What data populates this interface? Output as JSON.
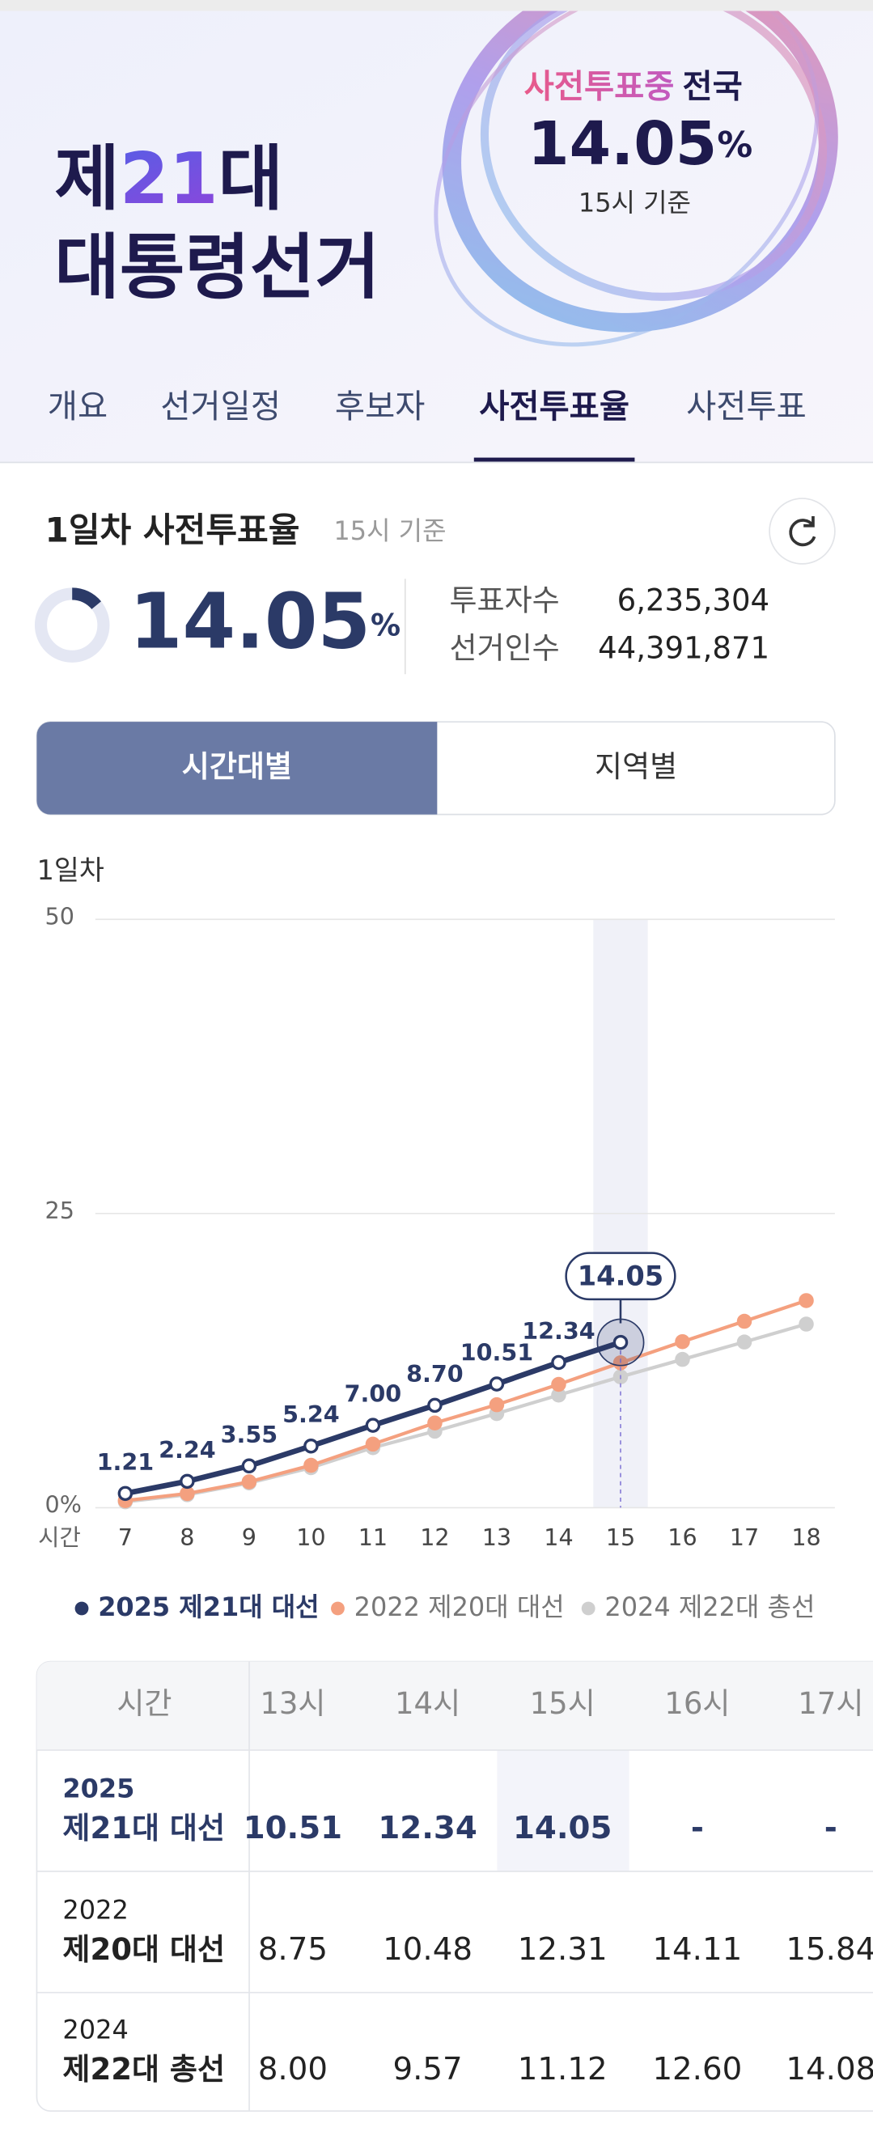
{
  "header": {
    "title_parts": [
      "제",
      "21",
      "대"
    ],
    "title_line2": "대통령선거",
    "badge_status": "사전투표중",
    "badge_scope": "전국",
    "badge_rate": 14.05,
    "badge_unit": "%",
    "badge_basis": "15시 기준"
  },
  "tabs": [
    "개요",
    "선거일정",
    "후보자",
    "사전투표율",
    "사전투표"
  ],
  "summary": {
    "title": "1일차 사전투표율",
    "basis": "15시 기준",
    "rate": 14.05,
    "unit": "%",
    "voters_label": "투표자수",
    "voters": "6,235,304",
    "electorate_label": "선거인수",
    "electorate": "44,391,871"
  },
  "segments": [
    "시간대별",
    "지역별"
  ],
  "chart_data": {
    "type": "line",
    "subtitle": "1일차",
    "x_label": "시간",
    "x": [
      7,
      8,
      9,
      10,
      11,
      12,
      13,
      14,
      15,
      16,
      17,
      18
    ],
    "ylim": [
      0,
      50
    ],
    "yticks": [
      {
        "value": 0,
        "label": "0%"
      },
      25,
      50
    ],
    "grid": true,
    "highlight_x": 15,
    "series": [
      {
        "name": "2025 제21대 대선",
        "color": "#2b3a67",
        "values": [
          1.21,
          2.24,
          3.55,
          5.24,
          7.0,
          8.7,
          10.51,
          12.34,
          14.05,
          null,
          null,
          null
        ],
        "value_labels": [
          "1.21",
          "2.24",
          "3.55",
          "5.24",
          "7.00",
          "8.70",
          "10.51",
          "12.34",
          "14.05",
          null,
          null,
          null
        ]
      },
      {
        "name": "2022 제20대 대선",
        "color": "#f4a07f",
        "values": [
          0.6,
          1.2,
          2.2,
          3.6,
          5.4,
          7.2,
          8.75,
          10.48,
          12.31,
          14.11,
          15.84,
          17.6
        ]
      },
      {
        "name": "2024 제22대 총선",
        "color": "#cfcfcf",
        "values": [
          0.5,
          1.1,
          2.1,
          3.4,
          5.1,
          6.5,
          8.0,
          9.57,
          11.12,
          12.6,
          14.08,
          15.6
        ]
      }
    ]
  },
  "table": {
    "header": [
      "시간",
      "13시",
      "14시",
      "15시",
      "16시",
      "17시"
    ],
    "rows": [
      {
        "year": "2025",
        "name": "제21대 대선",
        "values": [
          "10.51",
          "12.34",
          "14.05",
          "-",
          "-"
        ]
      },
      {
        "year": "2022",
        "name": "제20대 대선",
        "values": [
          "8.75",
          "10.48",
          "12.31",
          "14.11",
          "15.84"
        ]
      },
      {
        "year": "2024",
        "name": "제22대 총선",
        "values": [
          "8.00",
          "9.57",
          "11.12",
          "12.60",
          "14.08"
        ]
      }
    ]
  }
}
